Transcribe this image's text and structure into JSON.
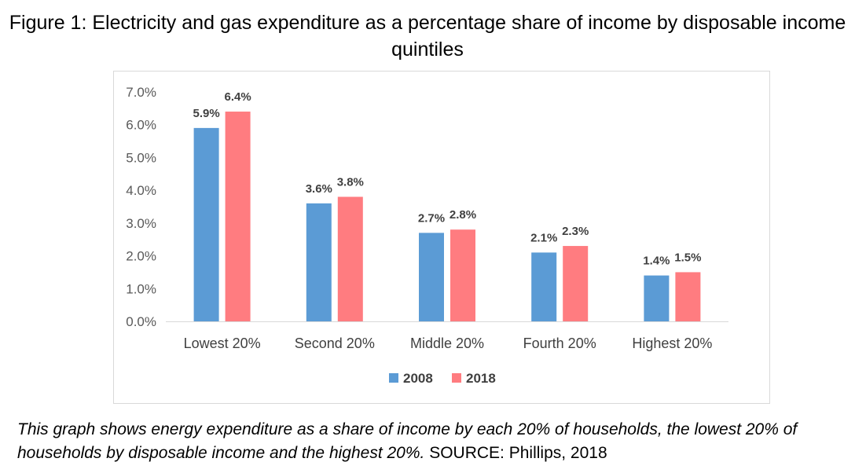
{
  "figure": {
    "title": "Figure 1: Electricity and gas expenditure as a percentage share of income by disposable income quintiles"
  },
  "caption": {
    "italic_text": "This graph shows energy expenditure as a share of income by each 20% of households, the lowest 20% of households by disposable income and the highest 20%.",
    "source_text": "SOURCE: Phillips, 2018"
  },
  "chart_data": {
    "type": "bar",
    "title": "Figure 1: Electricity and gas expenditure as a percentage share of income by disposable income quintiles",
    "xlabel": "",
    "ylabel": "",
    "categories": [
      "Lowest 20%",
      "Second 20%",
      "Middle 20%",
      "Fourth 20%",
      "Highest 20%"
    ],
    "series": [
      {
        "name": "2008",
        "color": "#5b9bd5",
        "values": [
          5.9,
          3.6,
          2.7,
          2.1,
          1.4
        ],
        "labels": [
          "5.9%",
          "3.6%",
          "2.7%",
          "2.1%",
          "1.4%"
        ]
      },
      {
        "name": "2018",
        "color": "#ff7c80",
        "values": [
          6.4,
          3.8,
          2.8,
          2.3,
          1.5
        ],
        "labels": [
          "6.4%",
          "3.8%",
          "2.8%",
          "2.3%",
          "1.5%"
        ]
      }
    ],
    "ylim": [
      0,
      7
    ],
    "yticks": [
      0,
      1,
      2,
      3,
      4,
      5,
      6,
      7
    ],
    "ytick_labels": [
      "0.0%",
      "1.0%",
      "2.0%",
      "3.0%",
      "4.0%",
      "5.0%",
      "6.0%",
      "7.0%"
    ],
    "grid": false,
    "legend": {
      "position": "bottom",
      "entries": [
        "2008",
        "2018"
      ]
    }
  }
}
